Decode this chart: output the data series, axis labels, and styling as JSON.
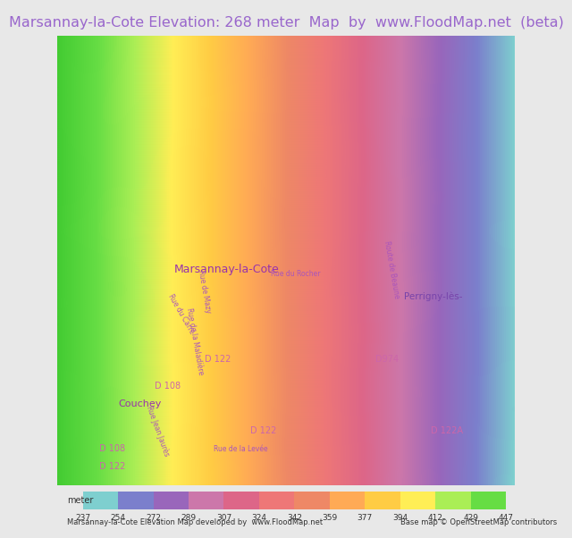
{
  "title": "Marsannay-la-Cote Elevation: 268 meter  Map  by  www.FloodMap.net  (beta)",
  "title_color": "#9966cc",
  "title_bg": "#e8e8e8",
  "title_fontsize": 11.5,
  "footer_text1": "Marsannay-la-Cote Elevation Map developed by  www.FloodMap.net",
  "footer_text2": "Base map © OpenStreetMap contributors",
  "meter_label": "meter",
  "elevation_values": [
    237,
    254,
    272,
    289,
    307,
    324,
    342,
    359,
    377,
    394,
    412,
    429,
    447
  ],
  "colorbar_colors": [
    "#7ecfcf",
    "#7b7fcc",
    "#9966bb",
    "#cc77aa",
    "#dd6688",
    "#ee7777",
    "#ee8866",
    "#ffaa55",
    "#ffcc44",
    "#ffee55",
    "#aaee55",
    "#66dd44"
  ],
  "map_bg": "#c8b8e8",
  "fig_width": 5.12,
  "fig_height": 5.82
}
